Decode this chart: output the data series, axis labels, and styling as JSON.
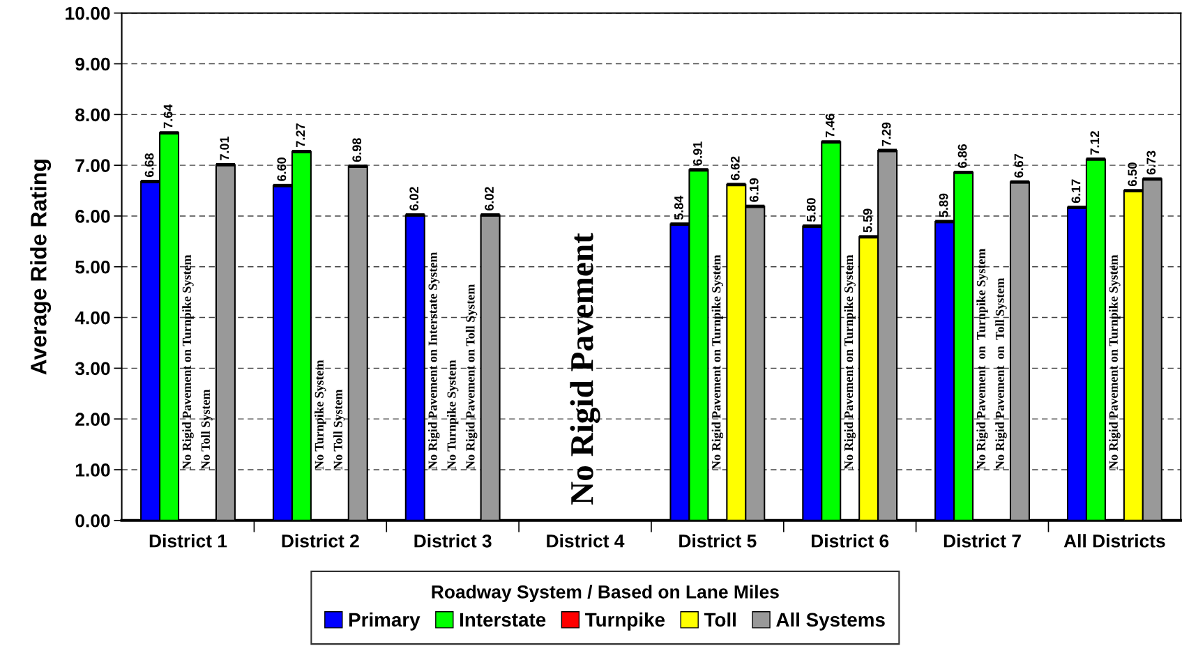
{
  "chart_data": {
    "type": "bar",
    "ylabel": "Average Ride Rating",
    "legend_title": "Roadway System / Based on Lane Miles",
    "categories": [
      "District 1",
      "District 2",
      "District 3",
      "District 4",
      "District 5",
      "District 6",
      "District 7",
      "All Districts"
    ],
    "series": [
      {
        "name": "Primary",
        "color": "#0000ff",
        "values": [
          6.68,
          6.6,
          6.02,
          null,
          5.84,
          5.8,
          5.89,
          6.17
        ],
        "value_labels": [
          "6.68",
          "6.60",
          "6.02",
          null,
          "5.84",
          "5.80",
          "5.89",
          "6.17"
        ]
      },
      {
        "name": "Interstate",
        "color": "#00ff00",
        "values": [
          7.64,
          7.27,
          null,
          null,
          6.91,
          7.46,
          6.86,
          7.12
        ],
        "value_labels": [
          "7.64",
          "7.27",
          null,
          null,
          "6.91",
          "7.46",
          "6.86",
          "7.12"
        ]
      },
      {
        "name": "Turnpike",
        "color": "#ff0000",
        "values": [
          null,
          null,
          null,
          null,
          null,
          null,
          null,
          null
        ],
        "value_labels": [
          null,
          null,
          null,
          null,
          null,
          null,
          null,
          null
        ]
      },
      {
        "name": "Toll",
        "color": "#ffff00",
        "values": [
          null,
          null,
          null,
          null,
          6.62,
          5.59,
          null,
          6.5
        ],
        "value_labels": [
          null,
          null,
          null,
          null,
          "6.62",
          "5.59",
          null,
          "6.50"
        ]
      },
      {
        "name": "All Systems",
        "color": "#999999",
        "values": [
          7.01,
          6.98,
          6.02,
          null,
          6.19,
          7.29,
          6.67,
          6.73
        ],
        "value_labels": [
          "7.01",
          "6.98",
          "6.02",
          null,
          "6.19",
          "7.29",
          "6.67",
          "6.73"
        ]
      }
    ],
    "ylim": [
      0,
      10
    ],
    "yticks": [
      {
        "value": 0,
        "label": "0.00"
      },
      {
        "value": 1,
        "label": "1.00"
      },
      {
        "value": 2,
        "label": "2.00"
      },
      {
        "value": 3,
        "label": "3.00"
      },
      {
        "value": 4,
        "label": "4.00"
      },
      {
        "value": 5,
        "label": "5.00"
      },
      {
        "value": 6,
        "label": "6.00"
      },
      {
        "value": 7,
        "label": "7.00"
      },
      {
        "value": 8,
        "label": "8.00"
      },
      {
        "value": 9,
        "label": "9.00"
      },
      {
        "value": 10,
        "label": "10.00"
      }
    ],
    "grid": "y",
    "legend": "bottom",
    "annotations": [
      "No Rigid Pavement on Turnpike System",
      "No Toll System",
      "No Turnpike System",
      "No Toll System",
      "No Rigid Pavement on Interstate System",
      "No Turnpike System",
      "No Rigid Pavement on Toll System",
      "No Rigid Pavement",
      "No Rigid Pavement on Turnpike System",
      "No Rigid Pavement on Turnpike System",
      "No Rigid Pavement  on  Turnpike System",
      "No Rigid Pavement  on  Toll System",
      "No Rigid Pavement on Turnpike System"
    ]
  }
}
